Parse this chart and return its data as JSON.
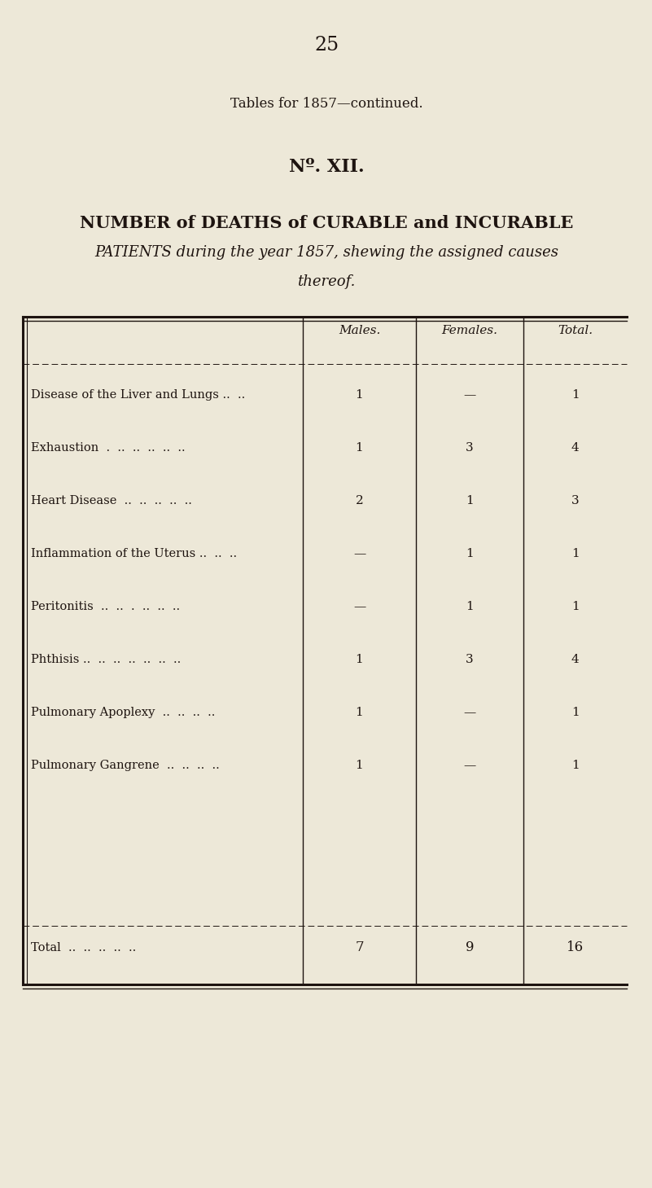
{
  "page_number": "25",
  "subtitle": "Tables for 1857—continued.",
  "table_id": "Nº. XII.",
  "title_line1": "NUMBER of DEATHS of CURABLE and INCURABLE",
  "title_line2": "PATIENTS during the year 1857, shewing the assigned causes",
  "title_line3": "thereof.",
  "col_headers": [
    "Males.",
    "Females.",
    "Total."
  ],
  "rows": [
    {
      "label": "Disease of the Liver and Lungs ..  ..",
      "males": "1",
      "females": "—",
      "total": "1"
    },
    {
      "label": "Exhaustion  .  ..  ..  ..  ..  ..",
      "males": "1",
      "females": "3",
      "total": "4"
    },
    {
      "label": "Heart Disease  ..  ..  ..  ..  ..",
      "males": "2",
      "females": "1",
      "total": "3"
    },
    {
      "label": "Inflammation of the Uterus ..  ..  ..",
      "males": "—",
      "females": "1",
      "total": "1"
    },
    {
      "label": "Peritonitis  ..  ..  .  ..  ..  ..",
      "males": "—",
      "females": "1",
      "total": "1"
    },
    {
      "label": "Phthisis ..  ..  ..  ..  ..  ..  ..",
      "males": "1",
      "females": "3",
      "total": "4"
    },
    {
      "label": "Pulmonary Apoplexy  ..  ..  ..  ..",
      "males": "1",
      "females": "—",
      "total": "1"
    },
    {
      "label": "Pulmonary Gangrene  ..  ..  ..  ..",
      "males": "1",
      "females": "—",
      "total": "1"
    }
  ],
  "total_row": {
    "label": "Total  ..  ..  ..  ..  ..",
    "males": "7",
    "females": "9",
    "total": "16"
  },
  "bg_color": "#ede8d8",
  "text_color": "#1e1410",
  "line_color": "#1e1410"
}
